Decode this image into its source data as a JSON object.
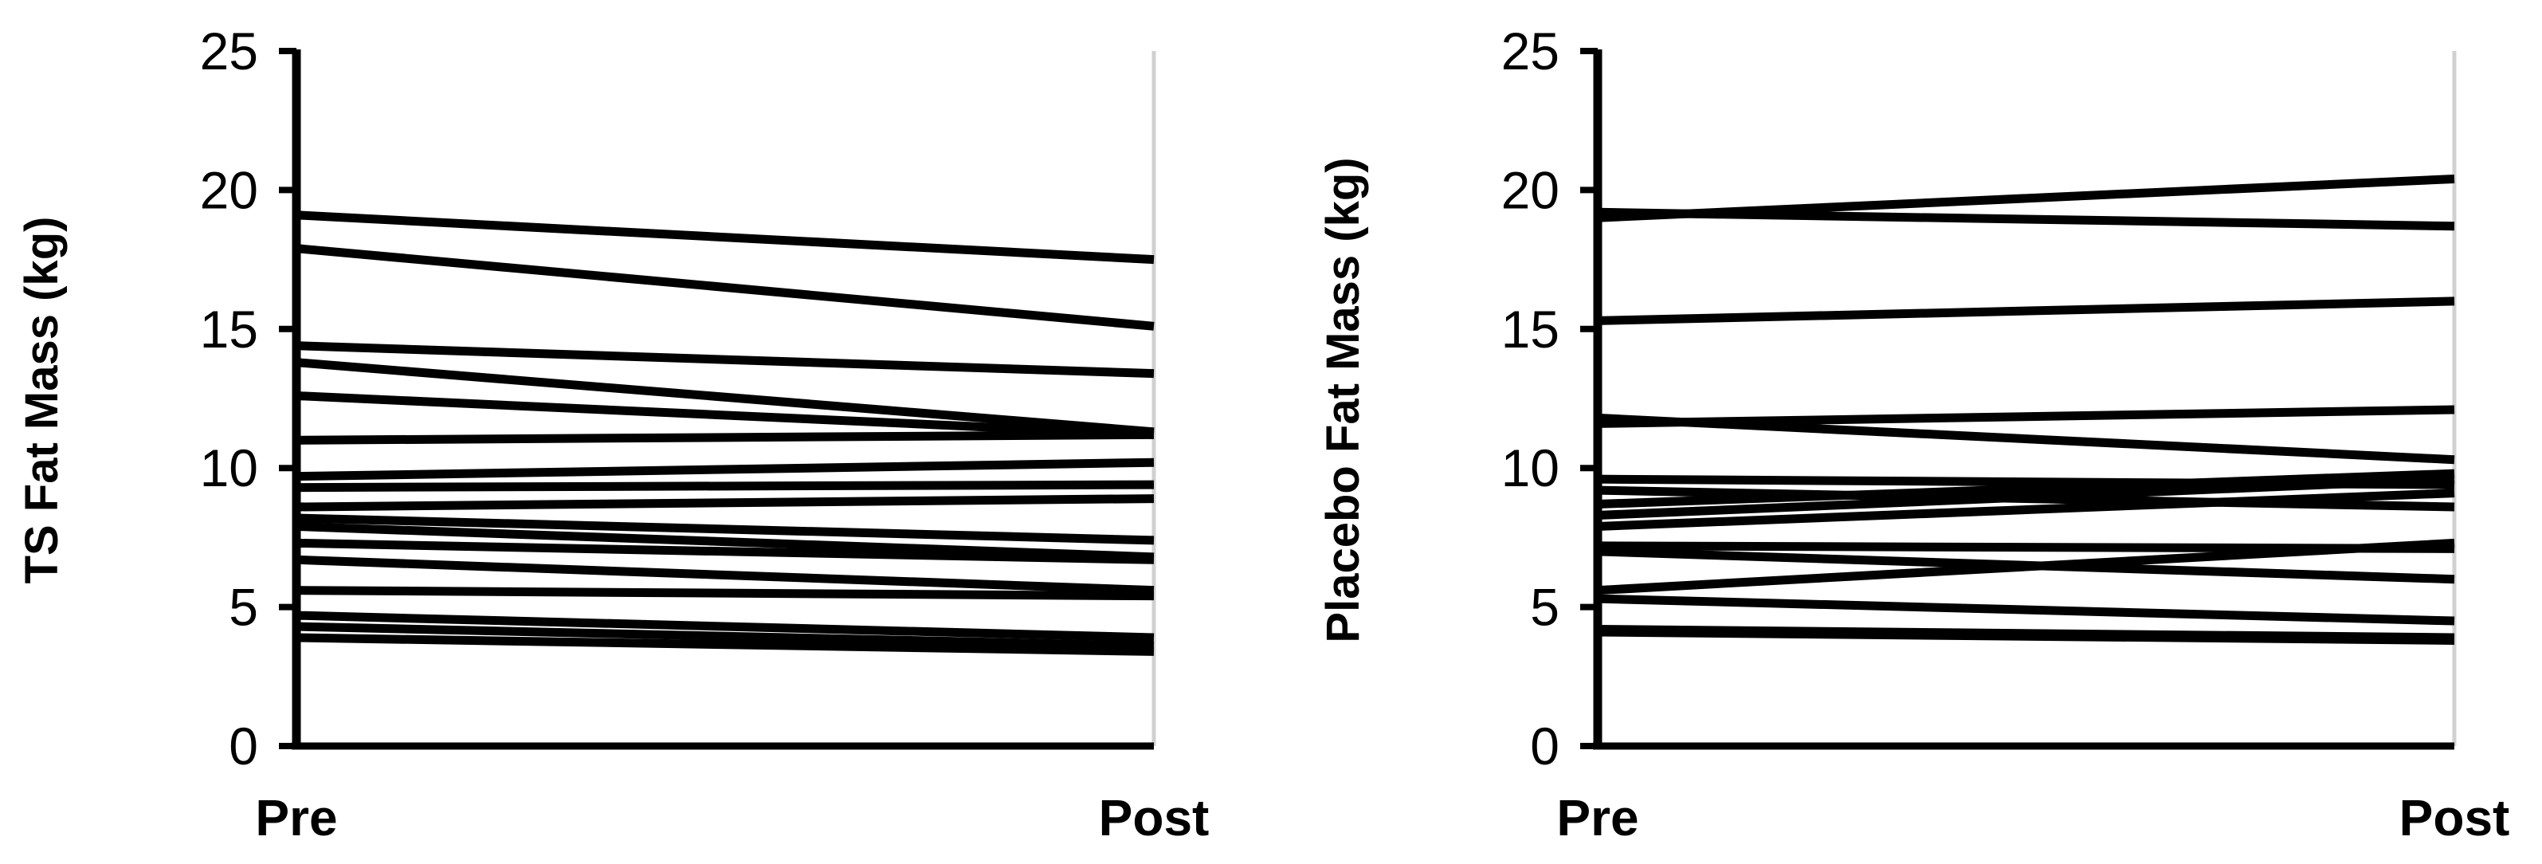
{
  "chart_data": [
    {
      "type": "line",
      "ylabel": "TS Fat Mass (kg)",
      "categories": [
        "Pre",
        "Post"
      ],
      "ylim": [
        0,
        25
      ],
      "yticks": [
        "0",
        "5",
        "10",
        "15",
        "20",
        "25"
      ],
      "grid": false,
      "legend": "none",
      "line_color": "#000000",
      "series": [
        {
          "values": [
            19.1,
            17.5
          ]
        },
        {
          "values": [
            17.9,
            15.1
          ]
        },
        {
          "values": [
            14.4,
            13.4
          ]
        },
        {
          "values": [
            13.8,
            11.3
          ]
        },
        {
          "values": [
            12.6,
            11.2
          ]
        },
        {
          "values": [
            11.0,
            11.2
          ]
        },
        {
          "values": [
            9.7,
            10.2
          ]
        },
        {
          "values": [
            9.3,
            9.4
          ]
        },
        {
          "values": [
            8.6,
            8.9
          ]
        },
        {
          "values": [
            8.2,
            7.4
          ]
        },
        {
          "values": [
            7.9,
            6.8
          ]
        },
        {
          "values": [
            7.3,
            6.7
          ]
        },
        {
          "values": [
            6.7,
            5.6
          ]
        },
        {
          "values": [
            5.6,
            5.4
          ]
        },
        {
          "values": [
            4.7,
            3.9
          ]
        },
        {
          "values": [
            4.3,
            3.6
          ]
        },
        {
          "values": [
            3.9,
            3.4
          ]
        }
      ]
    },
    {
      "type": "line",
      "ylabel": "Placebo Fat Mass (kg)",
      "categories": [
        "Pre",
        "Post"
      ],
      "ylim": [
        0,
        25
      ],
      "yticks": [
        "0",
        "5",
        "10",
        "15",
        "20",
        "25"
      ],
      "grid": false,
      "legend": "none",
      "line_color": "#000000",
      "series": [
        {
          "values": [
            19.2,
            18.7
          ]
        },
        {
          "values": [
            19.0,
            20.4
          ]
        },
        {
          "values": [
            15.3,
            16.0
          ]
        },
        {
          "values": [
            11.8,
            10.3
          ]
        },
        {
          "values": [
            11.6,
            12.1
          ]
        },
        {
          "values": [
            9.6,
            9.4
          ]
        },
        {
          "values": [
            9.2,
            8.6
          ]
        },
        {
          "values": [
            8.7,
            9.8
          ]
        },
        {
          "values": [
            8.3,
            9.6
          ]
        },
        {
          "values": [
            7.9,
            9.1
          ]
        },
        {
          "values": [
            7.2,
            7.1
          ]
        },
        {
          "values": [
            7.0,
            6.0
          ]
        },
        {
          "values": [
            5.6,
            7.3
          ]
        },
        {
          "values": [
            5.3,
            4.5
          ]
        },
        {
          "values": [
            4.2,
            3.9
          ]
        },
        {
          "values": [
            4.1,
            3.8
          ]
        }
      ]
    }
  ]
}
